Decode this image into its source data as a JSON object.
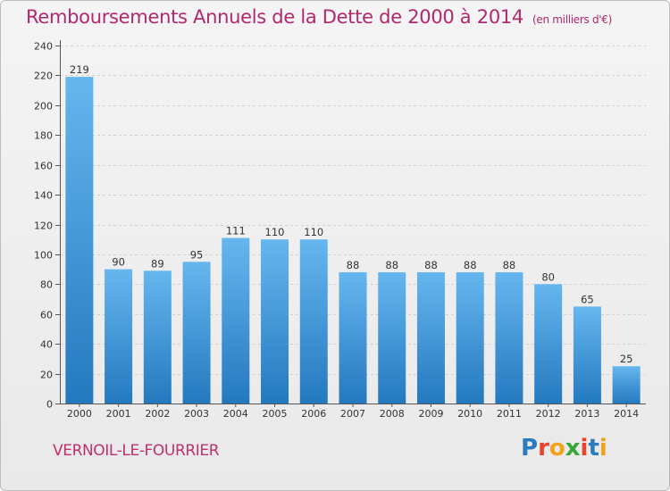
{
  "title": "Remboursements Annuels de la Dette de 2000 à 2014",
  "unit_note": "(en milliers d'€)",
  "commune": "VERNOIL-LE-FOURRIER",
  "logo": {
    "letters": [
      "P",
      "r",
      "o",
      "x",
      "i",
      "t",
      "i"
    ],
    "colors": [
      "#2a7bc0",
      "#e8432f",
      "#f2a31b",
      "#3aa63a",
      "#e8432f",
      "#2a7bc0",
      "#f2a31b"
    ]
  },
  "colors": {
    "bar_top": "#66b6ef",
    "bar_bottom": "#2479be",
    "title": "#b0286e"
  },
  "chart_data": {
    "type": "bar",
    "title": "Remboursements Annuels de la Dette de 2000 à 2014",
    "ylabel": "en milliers d'€",
    "xlabel": "",
    "categories": [
      "2000",
      "2001",
      "2002",
      "2003",
      "2004",
      "2005",
      "2006",
      "2007",
      "2008",
      "2009",
      "2010",
      "2011",
      "2012",
      "2013",
      "2014"
    ],
    "values": [
      219,
      90,
      89,
      95,
      111,
      110,
      110,
      88,
      88,
      88,
      88,
      88,
      80,
      65,
      25
    ],
    "ylim": [
      0,
      240
    ],
    "yticks": [
      0,
      20,
      40,
      60,
      80,
      100,
      120,
      140,
      160,
      180,
      200,
      220,
      240
    ],
    "grid": true
  }
}
